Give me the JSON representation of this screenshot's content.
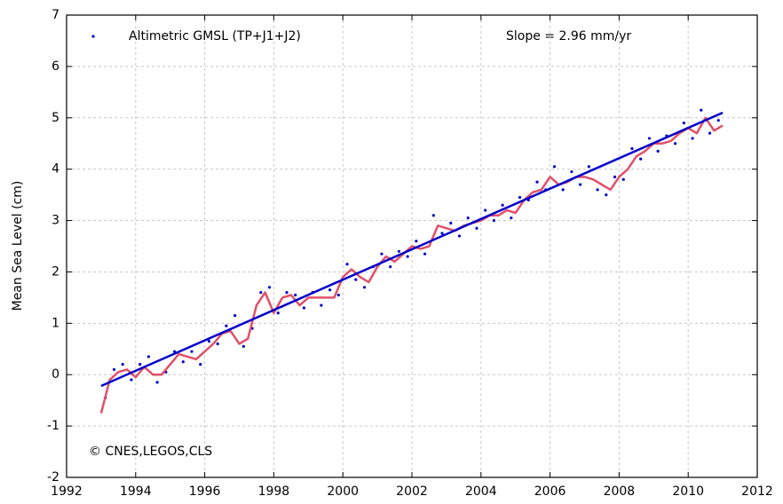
{
  "chart_data": {
    "type": "scatter",
    "ylabel": "Mean Sea Level (cm)",
    "annotations": [
      "Slope = 2.96 mm/yr",
      "© CNES,LEGOS,CLS"
    ],
    "xlim": [
      1992,
      2012
    ],
    "ylim": [
      -2,
      7
    ],
    "xticks": [
      1992,
      1994,
      1996,
      1998,
      2000,
      2002,
      2004,
      2006,
      2008,
      2010,
      2012
    ],
    "yticks": [
      -2,
      -1,
      0,
      1,
      2,
      3,
      4,
      5,
      6,
      7
    ],
    "grid": true,
    "legend": "upper left",
    "series": [
      {
        "name": "Altimetric GMSL (TP+J1+J2)",
        "type": "scatter",
        "color": "#0000cc",
        "x": [
          1993.125,
          1993.375,
          1993.625,
          1993.875,
          1994.125,
          1994.375,
          1994.625,
          1994.875,
          1995.125,
          1995.375,
          1995.625,
          1995.875,
          1996.125,
          1996.375,
          1996.625,
          1996.875,
          1997.125,
          1997.375,
          1997.625,
          1997.875,
          1998.125,
          1998.375,
          1998.625,
          1998.875,
          1999.125,
          1999.375,
          1999.625,
          1999.875,
          2000.125,
          2000.375,
          2000.625,
          2000.875,
          2001.125,
          2001.375,
          2001.625,
          2001.875,
          2002.125,
          2002.375,
          2002.625,
          2002.875,
          2003.125,
          2003.375,
          2003.625,
          2003.875,
          2004.125,
          2004.375,
          2004.625,
          2004.875,
          2005.125,
          2005.375,
          2005.625,
          2005.875,
          2006.125,
          2006.375,
          2006.625,
          2006.875,
          2007.125,
          2007.375,
          2007.625,
          2007.875,
          2008.125,
          2008.375,
          2008.625,
          2008.875,
          2009.125,
          2009.375,
          2009.625,
          2009.875,
          2010.125,
          2010.375,
          2010.625,
          2010.875
        ],
        "values": [
          -0.45,
          0.1,
          0.2,
          -0.1,
          0.2,
          0.35,
          -0.15,
          0.05,
          0.45,
          0.25,
          0.45,
          0.2,
          0.65,
          0.6,
          0.95,
          1.15,
          0.55,
          0.9,
          1.6,
          1.7,
          1.2,
          1.6,
          1.55,
          1.3,
          1.6,
          1.35,
          1.65,
          1.55,
          2.15,
          1.85,
          1.7,
          2.1,
          2.35,
          2.1,
          2.4,
          2.3,
          2.6,
          2.35,
          3.1,
          2.75,
          2.95,
          2.7,
          3.05,
          2.85,
          3.2,
          3.0,
          3.3,
          3.05,
          3.45,
          3.4,
          3.75,
          3.6,
          4.05,
          3.6,
          3.95,
          3.7,
          4.05,
          3.6,
          3.5,
          3.85,
          3.8,
          4.4,
          4.2,
          4.6,
          4.35,
          4.65,
          4.5,
          4.9,
          4.6,
          5.15,
          4.7,
          4.95
        ]
      },
      {
        "type": "line",
        "color": "#e05068",
        "x": [
          1993,
          1993.25,
          1993.5,
          1993.75,
          1994,
          1994.25,
          1994.5,
          1994.75,
          1995,
          1995.25,
          1995.5,
          1995.75,
          1996,
          1996.25,
          1996.5,
          1996.75,
          1997,
          1997.25,
          1997.5,
          1997.75,
          1998,
          1998.25,
          1998.5,
          1998.75,
          1999,
          1999.25,
          1999.5,
          1999.75,
          2000,
          2000.25,
          2000.5,
          2000.75,
          2001,
          2001.25,
          2001.5,
          2001.75,
          2002,
          2002.25,
          2002.5,
          2002.75,
          2003,
          2003.25,
          2003.5,
          2003.75,
          2004,
          2004.25,
          2004.5,
          2004.75,
          2005,
          2005.25,
          2005.5,
          2005.75,
          2006,
          2006.25,
          2006.5,
          2006.75,
          2007,
          2007.25,
          2007.5,
          2007.75,
          2008,
          2008.25,
          2008.5,
          2008.75,
          2009,
          2009.25,
          2009.5,
          2009.75,
          2010,
          2010.25,
          2010.5,
          2010.75,
          2011
        ],
        "values": [
          -0.75,
          -0.1,
          0.05,
          0.1,
          -0.05,
          0.15,
          0.0,
          0.0,
          0.2,
          0.4,
          0.35,
          0.3,
          0.45,
          0.6,
          0.8,
          0.85,
          0.6,
          0.7,
          1.35,
          1.6,
          1.2,
          1.5,
          1.55,
          1.35,
          1.5,
          1.5,
          1.5,
          1.5,
          1.9,
          2.05,
          1.9,
          1.8,
          2.1,
          2.3,
          2.2,
          2.35,
          2.5,
          2.45,
          2.5,
          2.9,
          2.85,
          2.8,
          2.9,
          2.95,
          3.0,
          3.1,
          3.1,
          3.2,
          3.15,
          3.4,
          3.55,
          3.6,
          3.85,
          3.7,
          3.75,
          3.85,
          3.85,
          3.8,
          3.7,
          3.6,
          3.85,
          4.0,
          4.25,
          4.35,
          4.5,
          4.5,
          4.55,
          4.7,
          4.8,
          4.7,
          5.0,
          4.75,
          4.85
        ]
      },
      {
        "type": "line",
        "color": "#0000cc",
        "x": [
          1993,
          2011
        ],
        "values": [
          -0.22,
          5.1
        ]
      }
    ]
  }
}
